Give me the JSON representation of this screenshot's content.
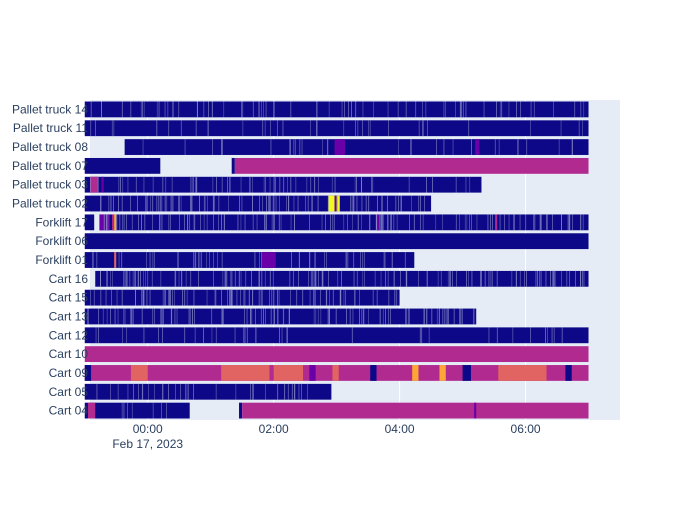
{
  "chart_data": {
    "type": "timeline",
    "title": "",
    "xlabel": "",
    "ylabel": "",
    "x_range": [
      "2023-02-16T23:05",
      "2023-02-17T07:30"
    ],
    "x_ticks": [
      {
        "time": "2023-02-17T00:00",
        "label": "00:00",
        "sublabel": "Feb 17, 2023"
      },
      {
        "time": "2023-02-17T02:00",
        "label": "02:00",
        "sublabel": ""
      },
      {
        "time": "2023-02-17T04:00",
        "label": "04:00",
        "sublabel": ""
      },
      {
        "time": "2023-02-17T06:00",
        "label": "06:00",
        "sublabel": ""
      }
    ],
    "grid": true,
    "colors": {
      "plot_bg": "#e5ecf6",
      "grid": "#ffffff",
      "dark": "#0d0887",
      "purple": "#6a00a8",
      "magenta": "#b12a90",
      "salmon": "#e16462",
      "orange": "#fca636",
      "yellow": "#f0f921",
      "stripe": "#8a8cc8"
    },
    "rows": [
      {
        "name": "Pallet truck 14",
        "base": "dark",
        "texture": "med",
        "segments": [
          [
            "2023-02-16T23:00",
            "2023-02-17T07:00",
            "dark"
          ]
        ]
      },
      {
        "name": "Pallet truck 11",
        "base": "dark",
        "texture": "light",
        "segments": [
          [
            "2023-02-16T23:00",
            "2023-02-17T07:00",
            "dark"
          ]
        ]
      },
      {
        "name": "Pallet truck 08",
        "base": "dark",
        "texture": "light",
        "segments": [
          [
            "2023-02-16T23:38",
            "2023-02-17T07:00",
            "dark"
          ],
          [
            "2023-02-17T02:58",
            "2023-02-17T03:08",
            "purple"
          ],
          [
            "2023-02-17T05:12",
            "2023-02-17T05:16",
            "purple"
          ]
        ]
      },
      {
        "name": "Pallet truck 07",
        "base": "dark",
        "texture": "none",
        "segments": [
          [
            "2023-02-16T23:00",
            "2023-02-17T00:12",
            "dark"
          ],
          [
            "2023-02-17T01:20",
            "2023-02-17T01:23",
            "dark"
          ],
          [
            "2023-02-17T01:23",
            "2023-02-17T07:00",
            "magenta"
          ]
        ]
      },
      {
        "name": "Pallet truck 03",
        "base": "dark",
        "texture": "med",
        "segments": [
          [
            "2023-02-16T23:00",
            "2023-02-17T05:18",
            "dark"
          ],
          [
            "2023-02-16T23:05",
            "2023-02-16T23:13",
            "magenta"
          ],
          [
            "2023-02-16T23:16",
            "2023-02-16T23:18",
            "purple"
          ]
        ]
      },
      {
        "name": "Pallet truck 02",
        "base": "dark",
        "texture": "dense",
        "segments": [
          [
            "2023-02-16T23:00",
            "2023-02-17T04:30",
            "dark"
          ],
          [
            "2023-02-17T02:52",
            "2023-02-17T02:58",
            "yellow"
          ],
          [
            "2023-02-17T02:58",
            "2023-02-17T03:00",
            "purple"
          ],
          [
            "2023-02-17T03:00",
            "2023-02-17T03:03",
            "yellow"
          ]
        ]
      },
      {
        "name": "Forklift 17",
        "base": "dark",
        "texture": "dense",
        "segments": [
          [
            "2023-02-16T23:00",
            "2023-02-16T23:09",
            "dark"
          ],
          [
            "2023-02-16T23:14",
            "2023-02-17T07:00",
            "dark"
          ],
          [
            "2023-02-16T23:14",
            "2023-02-16T23:24",
            "purple"
          ],
          [
            "2023-02-16T23:26",
            "2023-02-16T23:28",
            "magenta"
          ],
          [
            "2023-02-16T23:28",
            "2023-02-16T23:30",
            "orange"
          ],
          [
            "2023-02-17T03:38",
            "2023-02-17T03:41",
            "purple"
          ],
          [
            "2023-02-17T05:31",
            "2023-02-17T05:33",
            "magenta"
          ]
        ]
      },
      {
        "name": "Forklift 06",
        "base": "dark",
        "texture": "none",
        "segments": [
          [
            "2023-02-16T23:00",
            "2023-02-17T07:00",
            "dark"
          ]
        ]
      },
      {
        "name": "Forklift 01",
        "base": "dark",
        "texture": "med",
        "segments": [
          [
            "2023-02-16T23:00",
            "2023-02-17T04:14",
            "dark"
          ],
          [
            "2023-02-16T23:28",
            "2023-02-16T23:30",
            "salmon"
          ],
          [
            "2023-02-17T01:48",
            "2023-02-17T02:02",
            "purple"
          ]
        ]
      },
      {
        "name": "Cart 16",
        "base": "dark",
        "texture": "dense",
        "segments": [
          [
            "2023-02-16T23:10",
            "2023-02-17T07:00",
            "dark"
          ]
        ]
      },
      {
        "name": "Cart 15",
        "base": "dark",
        "texture": "dense",
        "segments": [
          [
            "2023-02-16T23:00",
            "2023-02-17T04:00",
            "dark"
          ]
        ]
      },
      {
        "name": "Cart 13",
        "base": "dark",
        "texture": "dense",
        "segments": [
          [
            "2023-02-16T23:00",
            "2023-02-17T05:13",
            "dark"
          ]
        ]
      },
      {
        "name": "Cart 12",
        "base": "dark",
        "texture": "light",
        "segments": [
          [
            "2023-02-16T23:00",
            "2023-02-17T07:00",
            "dark"
          ]
        ]
      },
      {
        "name": "Cart 10",
        "base": "magenta",
        "texture": "none",
        "segments": [
          [
            "2023-02-16T23:00",
            "2023-02-17T07:00",
            "magenta"
          ]
        ]
      },
      {
        "name": "Cart 09",
        "base": "magenta",
        "texture": "none",
        "segments": [
          [
            "2023-02-16T23:00",
            "2023-02-17T07:00",
            "magenta"
          ],
          [
            "2023-02-16T23:00",
            "2023-02-16T23:06",
            "dark"
          ],
          [
            "2023-02-16T23:44",
            "2023-02-17T00:00",
            "salmon"
          ],
          [
            "2023-02-17T01:10",
            "2023-02-17T01:56",
            "salmon"
          ],
          [
            "2023-02-17T02:00",
            "2023-02-17T02:28",
            "salmon"
          ],
          [
            "2023-02-17T02:34",
            "2023-02-17T02:40",
            "purple"
          ],
          [
            "2023-02-17T02:56",
            "2023-02-17T03:02",
            "salmon"
          ],
          [
            "2023-02-17T03:32",
            "2023-02-17T03:38",
            "dark"
          ],
          [
            "2023-02-17T04:12",
            "2023-02-17T04:18",
            "orange"
          ],
          [
            "2023-02-17T04:38",
            "2023-02-17T04:44",
            "orange"
          ],
          [
            "2023-02-17T05:00",
            "2023-02-17T05:08",
            "dark"
          ],
          [
            "2023-02-17T05:34",
            "2023-02-17T06:20",
            "salmon"
          ],
          [
            "2023-02-17T06:38",
            "2023-02-17T06:44",
            "dark"
          ]
        ]
      },
      {
        "name": "Cart 05",
        "base": "dark",
        "texture": "med",
        "segments": [
          [
            "2023-02-16T23:00",
            "2023-02-17T02:55",
            "dark"
          ]
        ]
      },
      {
        "name": "Cart 04",
        "base": "dark",
        "texture": "light",
        "segments": [
          [
            "2023-02-16T23:00",
            "2023-02-17T00:40",
            "dark"
          ],
          [
            "2023-02-16T23:03",
            "2023-02-16T23:10",
            "magenta"
          ],
          [
            "2023-02-17T01:27",
            "2023-02-17T01:30",
            "dark"
          ],
          [
            "2023-02-17T01:30",
            "2023-02-17T07:00",
            "magenta"
          ],
          [
            "2023-02-17T05:11",
            "2023-02-17T05:13",
            "purple"
          ]
        ]
      }
    ]
  }
}
